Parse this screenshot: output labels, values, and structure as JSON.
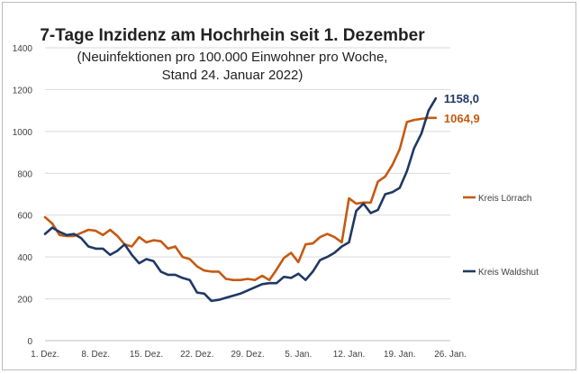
{
  "chart_data": {
    "type": "line",
    "title": "7-Tage Inzidenz am Hochrhein seit 1. Dezember",
    "subtitle_lines": [
      "(Neuinfektionen pro 100.000 Einwohner pro Woche,",
      "Stand 24. Januar 2022)"
    ],
    "xlabel": "",
    "ylabel": "",
    "ylim": [
      0,
      1400
    ],
    "yticks": [
      0,
      200,
      400,
      600,
      800,
      1000,
      1200,
      1400
    ],
    "x_tick_labels": [
      "1. Dez.",
      "8. Dez.",
      "15. Dez.",
      "22. Dez.",
      "29. Dez.",
      "5. Jan.",
      "12. Jan.",
      "19. Jan.",
      "26. Jan."
    ],
    "x_tick_days": [
      0,
      7,
      14,
      21,
      28,
      35,
      42,
      49,
      56
    ],
    "grid": "horizontal",
    "legend_position": "right",
    "x_dates": [
      "1. Dez.",
      "2. Dez.",
      "3. Dez.",
      "4. Dez.",
      "5. Dez.",
      "6. Dez.",
      "7. Dez.",
      "8. Dez.",
      "9. Dez.",
      "10. Dez.",
      "11. Dez.",
      "12. Dez.",
      "13. Dez.",
      "14. Dez.",
      "15. Dez.",
      "16. Dez.",
      "17. Dez.",
      "18. Dez.",
      "19. Dez.",
      "20. Dez.",
      "21. Dez.",
      "22. Dez.",
      "23. Dez.",
      "24. Dez.",
      "25. Dez.",
      "26. Dez.",
      "27. Dez.",
      "28. Dez.",
      "29. Dez.",
      "30. Dez.",
      "31. Dez.",
      "1. Jan.",
      "2. Jan.",
      "3. Jan.",
      "4. Jan.",
      "5. Jan.",
      "6. Jan.",
      "7. Jan.",
      "8. Jan.",
      "9. Jan.",
      "10. Jan.",
      "11. Jan.",
      "12. Jan.",
      "13. Jan.",
      "14. Jan.",
      "15. Jan.",
      "16. Jan.",
      "17. Jan.",
      "18. Jan.",
      "19. Jan.",
      "20. Jan.",
      "21. Jan.",
      "22. Jan.",
      "23. Jan.",
      "24. Jan."
    ],
    "series": [
      {
        "name": "Kreis Lörrach",
        "color": "#c55a11",
        "end_label": "1064,9",
        "values": [
          590,
          560,
          505,
          500,
          500,
          515,
          530,
          525,
          505,
          530,
          500,
          460,
          450,
          495,
          470,
          480,
          475,
          440,
          450,
          400,
          390,
          355,
          335,
          330,
          330,
          295,
          290,
          290,
          295,
          290,
          310,
          290,
          340,
          395,
          420,
          375,
          460,
          465,
          495,
          510,
          495,
          470,
          680,
          655,
          660,
          660,
          760,
          785,
          840,
          915,
          1045,
          1055,
          1060,
          1065,
          1065
        ]
      },
      {
        "name": "Kreis Waldshut",
        "color": "#1f3864",
        "end_label": "1158,0",
        "values": [
          510,
          540,
          520,
          505,
          510,
          490,
          450,
          440,
          440,
          410,
          430,
          460,
          410,
          370,
          390,
          380,
          330,
          315,
          315,
          300,
          290,
          230,
          225,
          190,
          195,
          205,
          215,
          225,
          240,
          255,
          270,
          275,
          275,
          305,
          300,
          320,
          290,
          330,
          385,
          400,
          420,
          450,
          470,
          620,
          655,
          610,
          625,
          700,
          710,
          730,
          810,
          920,
          990,
          1100,
          1158
        ]
      }
    ]
  }
}
